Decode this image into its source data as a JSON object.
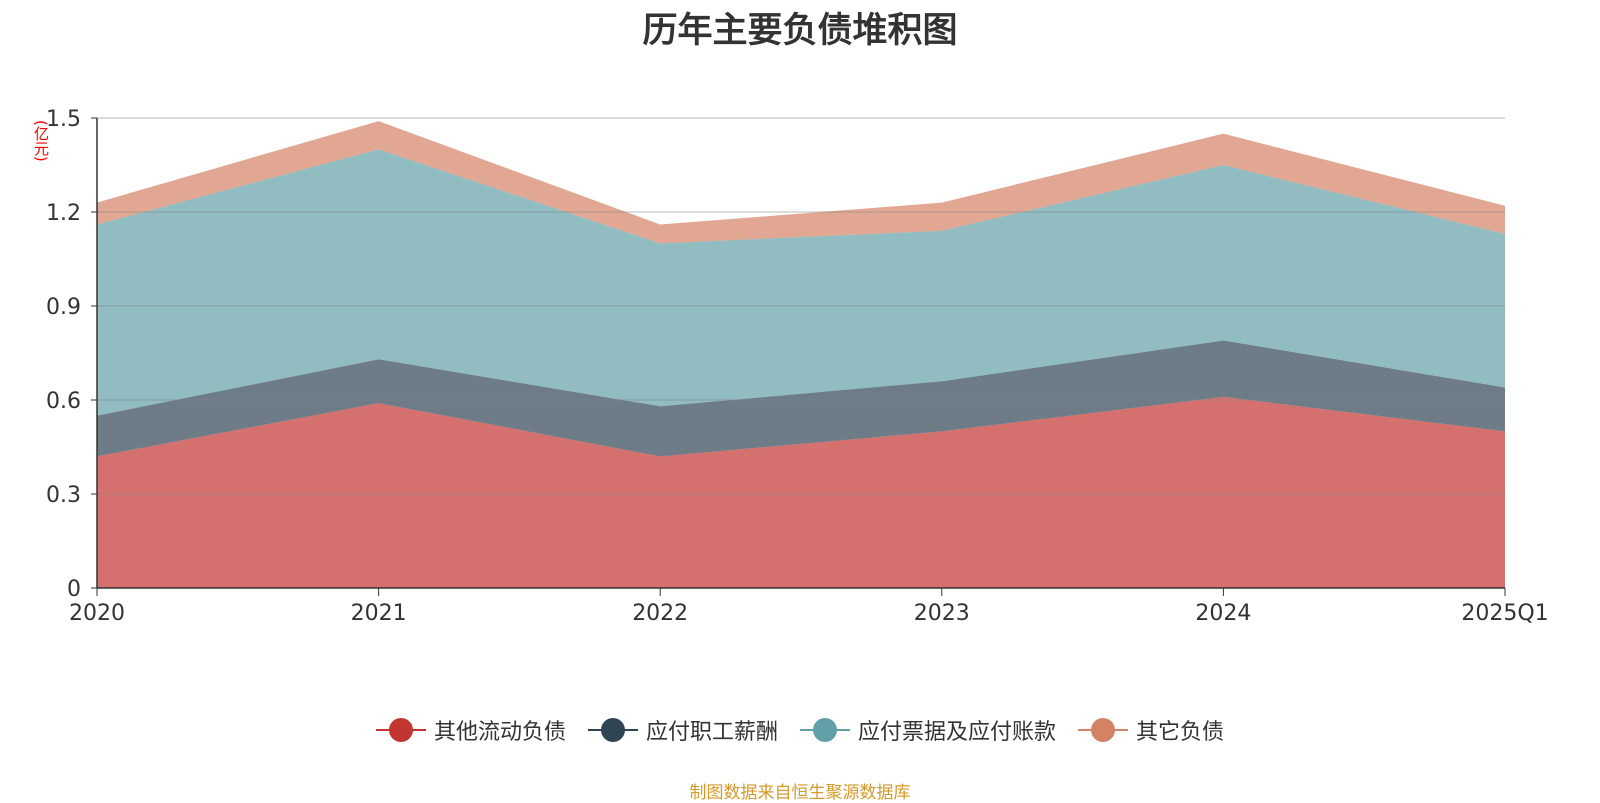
{
  "chart_data": {
    "type": "area",
    "stacked": true,
    "title": "历年主要负债堆积图",
    "unit": "(亿元)",
    "categories": [
      "2020",
      "2021",
      "2022",
      "2023",
      "2024",
      "2025Q1"
    ],
    "ylim": [
      0,
      1.5
    ],
    "yticks": [
      "0",
      "0.3",
      "0.6",
      "0.9",
      "1.2",
      "1.5"
    ],
    "series": [
      {
        "name": "其他流动负债",
        "color": "#c23531",
        "values": [
          0.42,
          0.59,
          0.42,
          0.5,
          0.61,
          0.5
        ]
      },
      {
        "name": "应付职工薪酬",
        "color": "#2f4554",
        "values": [
          0.13,
          0.14,
          0.16,
          0.16,
          0.18,
          0.14
        ]
      },
      {
        "name": "应付票据及应付账款",
        "color": "#61a0a8",
        "values": [
          0.61,
          0.67,
          0.52,
          0.48,
          0.56,
          0.49
        ]
      },
      {
        "name": "其它负债",
        "color": "#d48265",
        "values": [
          0.07,
          0.09,
          0.06,
          0.09,
          0.1,
          0.09
        ]
      }
    ],
    "grid": true,
    "legend_position": "bottom"
  },
  "source_note": "制图数据来自恒生聚源数据库"
}
